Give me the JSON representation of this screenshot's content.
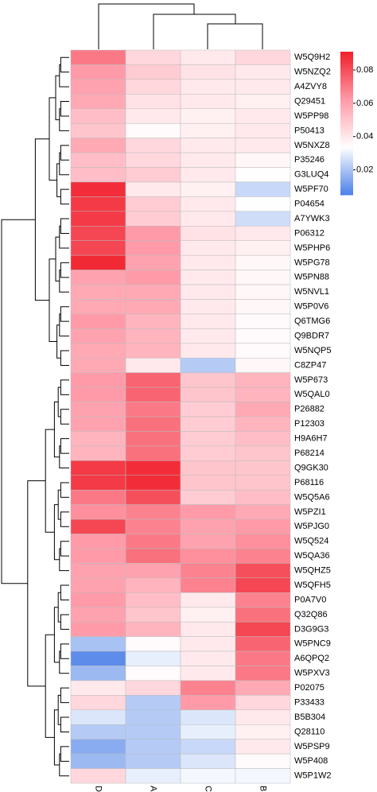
{
  "chart_data": {
    "type": "heatmap",
    "rows": [
      "W5Q9H2",
      "W5NZQ2",
      "A4ZVY8",
      "Q29451",
      "W5PP98",
      "P50413",
      "W5NXZ8",
      "P35246",
      "G3LUQ4",
      "W5PF70",
      "P04654",
      "A7YWK3",
      "P06312",
      "W5PHP6",
      "W5PG78",
      "W5PN88",
      "W5NVL1",
      "W5P0V6",
      "Q6TMG6",
      "Q9BDR7",
      "W5NQP5",
      "C8ZP47",
      "W5P673",
      "W5QAL0",
      "P26882",
      "P12303",
      "H9A6H7",
      "P68214",
      "Q9GK30",
      "P68116",
      "W5Q5A6",
      "W5PZI1",
      "W5PJG0",
      "W5Q524",
      "W5QA36",
      "W5QHZ5",
      "W5QFH5",
      "P0A7V0",
      "Q32Q86",
      "D3G9G3",
      "W5PNC9",
      "A6QPQ2",
      "W5PXV3",
      "P02075",
      "P33433",
      "B5B304",
      "Q28110",
      "W5PSP9",
      "W5P408",
      "W5P1W2"
    ],
    "series": [
      {
        "name": "D",
        "values": [
          0.07,
          0.062,
          0.06,
          0.058,
          0.052,
          0.05,
          0.058,
          0.052,
          0.052,
          0.088,
          0.085,
          0.085,
          0.082,
          0.082,
          0.089,
          0.06,
          0.058,
          0.058,
          0.062,
          0.06,
          0.058,
          0.058,
          0.062,
          0.062,
          0.06,
          0.06,
          0.055,
          0.055,
          0.085,
          0.085,
          0.07,
          0.065,
          0.082,
          0.062,
          0.062,
          0.06,
          0.06,
          0.062,
          0.06,
          0.062,
          0.02,
          0.008,
          0.018,
          0.04,
          0.045,
          0.028,
          0.022,
          0.015,
          0.018,
          0.045
        ]
      },
      {
        "name": "A",
        "values": [
          0.045,
          0.048,
          0.045,
          0.042,
          0.04,
          0.035,
          0.045,
          0.045,
          0.048,
          0.04,
          0.048,
          0.048,
          0.062,
          0.062,
          0.06,
          0.062,
          0.058,
          0.058,
          0.055,
          0.055,
          0.055,
          0.04,
          0.075,
          0.075,
          0.07,
          0.072,
          0.072,
          0.072,
          0.088,
          0.088,
          0.08,
          0.068,
          0.068,
          0.07,
          0.072,
          0.06,
          0.055,
          0.052,
          0.05,
          0.055,
          0.035,
          0.03,
          0.035,
          0.045,
          0.022,
          0.022,
          0.022,
          0.022,
          0.022,
          0.03
        ]
      },
      {
        "name": "C",
        "values": [
          0.04,
          0.042,
          0.04,
          0.04,
          0.038,
          0.038,
          0.04,
          0.04,
          0.04,
          0.038,
          0.04,
          0.04,
          0.042,
          0.04,
          0.04,
          0.04,
          0.04,
          0.04,
          0.04,
          0.04,
          0.04,
          0.022,
          0.05,
          0.05,
          0.048,
          0.048,
          0.048,
          0.048,
          0.05,
          0.05,
          0.048,
          0.062,
          0.06,
          0.06,
          0.065,
          0.068,
          0.068,
          0.04,
          0.038,
          0.04,
          0.04,
          0.04,
          0.04,
          0.068,
          0.062,
          0.028,
          0.03,
          0.025,
          0.028,
          0.032
        ]
      },
      {
        "name": "B",
        "values": [
          0.045,
          0.04,
          0.04,
          0.038,
          0.04,
          0.04,
          0.04,
          0.036,
          0.034,
          0.025,
          0.034,
          0.026,
          0.04,
          0.038,
          0.036,
          0.036,
          0.036,
          0.036,
          0.035,
          0.035,
          0.035,
          0.036,
          0.055,
          0.055,
          0.058,
          0.055,
          0.052,
          0.05,
          0.05,
          0.05,
          0.052,
          0.058,
          0.062,
          0.065,
          0.068,
          0.08,
          0.082,
          0.068,
          0.072,
          0.082,
          0.075,
          0.07,
          0.07,
          0.058,
          0.045,
          0.04,
          0.038,
          0.04,
          0.035,
          0.032
        ]
      }
    ],
    "colors": [
      "#4a7fe8",
      "#ffffff",
      "#ff9aa8",
      "#f0202c"
    ],
    "clim": [
      0.005,
      0.091
    ],
    "cticks": [
      0.02,
      0.04,
      0.06,
      0.08
    ]
  }
}
